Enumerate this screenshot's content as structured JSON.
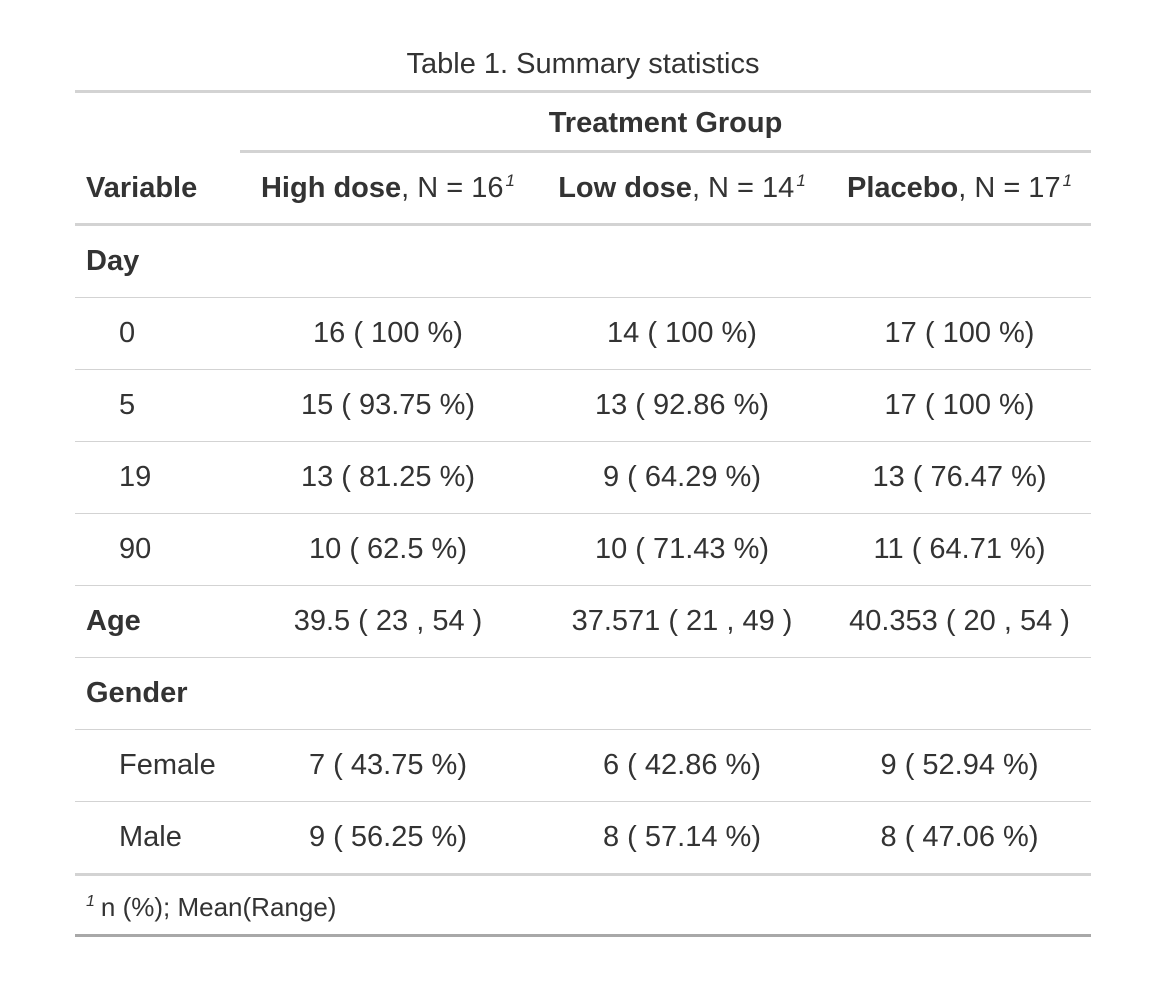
{
  "caption": "Table 1. Summary statistics",
  "spanner": "Treatment Group",
  "columns": {
    "variable": "Variable",
    "high": {
      "name": "High dose",
      "n": ", N = 16",
      "mark": "1"
    },
    "low": {
      "name": "Low dose",
      "n": ", N = 14",
      "mark": "1"
    },
    "placebo": {
      "name": "Placebo",
      "n": ", N = 17",
      "mark": "1"
    }
  },
  "rows": [
    {
      "label": "Day",
      "type": "group",
      "high": "",
      "low": "",
      "placebo": ""
    },
    {
      "label": "0",
      "type": "level",
      "high": "16 ( 100 %)",
      "low": "14 ( 100 %)",
      "placebo": "17 ( 100 %)"
    },
    {
      "label": "5",
      "type": "level",
      "high": "15 ( 93.75 %)",
      "low": "13 ( 92.86 %)",
      "placebo": "17 ( 100 %)"
    },
    {
      "label": "19",
      "type": "level",
      "high": "13 ( 81.25 %)",
      "low": "9 ( 64.29 %)",
      "placebo": "13 ( 76.47 %)"
    },
    {
      "label": "90",
      "type": "level",
      "high": "10 ( 62.5 %)",
      "low": "10 ( 71.43 %)",
      "placebo": "11 ( 64.71 %)"
    },
    {
      "label": "Age",
      "type": "group",
      "high": "39.5 ( 23 , 54 )",
      "low": "37.571 ( 21 , 49 )",
      "placebo": "40.353 ( 20 , 54 )"
    },
    {
      "label": "Gender",
      "type": "group",
      "high": "",
      "low": "",
      "placebo": ""
    },
    {
      "label": "Female",
      "type": "level",
      "high": "7 ( 43.75 %)",
      "low": "6 ( 42.86 %)",
      "placebo": "9 ( 52.94 %)"
    },
    {
      "label": "Male",
      "type": "level",
      "high": "9 ( 56.25 %)",
      "low": "8 ( 57.14 %)",
      "placebo": "8 ( 47.06 %)"
    }
  ],
  "footnote": {
    "mark": "1",
    "text": "n (%); Mean(Range)"
  }
}
